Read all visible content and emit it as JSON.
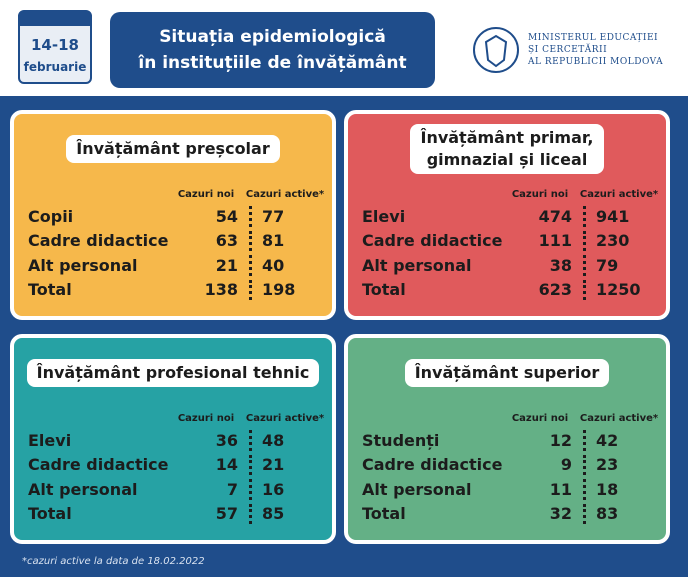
{
  "header": {
    "date_range": "14-18",
    "month": "februarie",
    "title_lines": [
      "Situația epidemiologică",
      "în instituțiile de învățământ"
    ],
    "ministry_lines": [
      "MINISTERUL EDUCAȚIEI",
      "ȘI CERCETĂRII",
      "AL REPUBLICII MOLDOVA"
    ]
  },
  "panels": [
    {
      "title_lines": [
        "Învățământ preșcolar"
      ],
      "column_headers": [
        "Cazuri noi",
        "Cazuri active*"
      ],
      "rows": [
        [
          "Copii",
          54,
          77
        ],
        [
          "Cadre didactice",
          63,
          81
        ],
        [
          "Alt personal",
          21,
          40
        ],
        [
          "Total",
          138,
          198
        ]
      ]
    },
    {
      "title_lines": [
        "Învățământ primar,",
        "gimnazial și liceal"
      ],
      "column_headers": [
        "Cazuri noi",
        "Cazuri active*"
      ],
      "rows": [
        [
          "Elevi",
          474,
          941
        ],
        [
          "Cadre didactice",
          111,
          230
        ],
        [
          "Alt personal",
          38,
          79
        ],
        [
          "Total",
          623,
          1250
        ]
      ]
    },
    {
      "title_lines": [
        "Învățământ profesional tehnic"
      ],
      "column_headers": [
        "Cazuri noi",
        "Cazuri active*"
      ],
      "rows": [
        [
          "Elevi",
          36,
          48
        ],
        [
          "Cadre didactice",
          14,
          21
        ],
        [
          "Alt personal",
          7,
          16
        ],
        [
          "Total",
          57,
          85
        ]
      ]
    },
    {
      "title_lines": [
        "Învățământ superior"
      ],
      "column_headers": [
        "Cazuri noi",
        "Cazuri active*"
      ],
      "rows": [
        [
          "Studenți",
          12,
          42
        ],
        [
          "Cadre didactice",
          9,
          23
        ],
        [
          "Alt personal",
          11,
          18
        ],
        [
          "Total",
          32,
          83
        ]
      ]
    }
  ],
  "footnote": "*cazuri active la data de 18.02.2022"
}
